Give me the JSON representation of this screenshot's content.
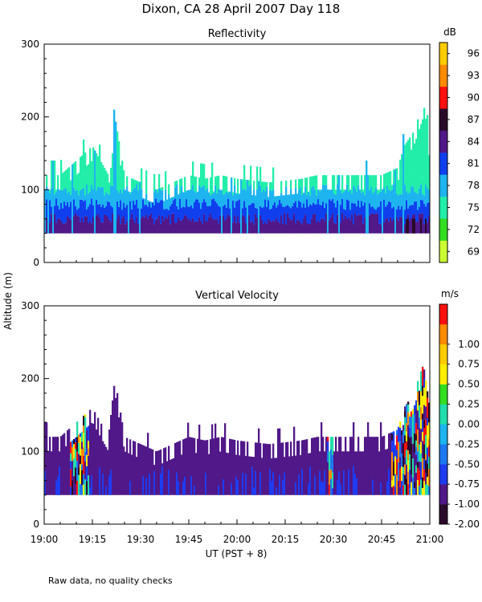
{
  "title": "Dixon, CA 28 April 2007  Day 118",
  "ylabel": "Altitude (m)",
  "xlabel": "UT  (PST + 8)",
  "footnote": "Raw data, no quality checks",
  "x_ticks": [
    "19:00",
    "19:15",
    "19:30",
    "19:45",
    "20:00",
    "20:15",
    "20:30",
    "20:45",
    "21:00"
  ],
  "colors": {
    "reflectivity": [
      "#ccff33",
      "#33dd22",
      "#22eeaa",
      "#1eb4f0",
      "#1040ee",
      "#501888",
      "#2a0a2a",
      "#ff1010",
      "#ff8c00",
      "#ffcc00"
    ],
    "velocity": [
      "#2a0a2a",
      "#501888",
      "#1e3cf0",
      "#1e78f0",
      "#1eb4f0",
      "#22ddaa",
      "#33dd22",
      "#ffee00",
      "#ffcc00",
      "#ff8c00",
      "#ff1010"
    ]
  },
  "chart_data": [
    {
      "type": "heatmap",
      "title": "Reflectivity",
      "units": "dB",
      "xlim": [
        0,
        120
      ],
      "xlabel": "UT  (PST + 8)",
      "ylabel": "Altitude (m)",
      "ylim": [
        0,
        300
      ],
      "y_ticks": [
        "0",
        "100",
        "200",
        "300"
      ],
      "colorbar_ticks": [
        "69",
        "72",
        "75",
        "78",
        "81",
        "84",
        "87",
        "90",
        "93",
        "96"
      ],
      "echo_base_m": 40,
      "profile_top_m": {
        "x_min": [
          0,
          5,
          10,
          15,
          20,
          22,
          25,
          35,
          40,
          45,
          50,
          55,
          60,
          70,
          80,
          85,
          90,
          95,
          100,
          105,
          110,
          112,
          115,
          118,
          120
        ],
        "top": [
          120,
          120,
          140,
          160,
          120,
          200,
          120,
          100,
          110,
          120,
          115,
          120,
          115,
          110,
          115,
          120,
          120,
          120,
          120,
          120,
          130,
          160,
          180,
          220,
          160
        ]
      },
      "layers": [
        {
          "top_m": 60,
          "value_db": 84
        },
        {
          "top_m": 80,
          "value_db": 81
        },
        {
          "top_m": 100,
          "value_db": 78
        },
        {
          "top_m": 120,
          "value_db": 75
        }
      ]
    },
    {
      "type": "heatmap",
      "title": "Vertical Velocity",
      "units": "m/s",
      "xlim": [
        0,
        120
      ],
      "xlabel": "UT  (PST + 8)",
      "ylabel": "Altitude (m)",
      "ylim": [
        0,
        300
      ],
      "y_ticks": [
        "0",
        "100",
        "200",
        "300"
      ],
      "colorbar_ticks": [
        "-2.00",
        "-1.00",
        "-0.75",
        "-0.50",
        "-0.25",
        "0.00",
        "0.25",
        "0.50",
        "0.75",
        "1.00"
      ],
      "echo_base_m": 40,
      "profile_top_m": {
        "x_min": [
          0,
          5,
          10,
          15,
          20,
          22,
          25,
          35,
          40,
          45,
          50,
          55,
          60,
          70,
          80,
          85,
          90,
          95,
          100,
          105,
          110,
          112,
          115,
          118,
          120
        ],
        "top": [
          120,
          120,
          140,
          160,
          120,
          200,
          120,
          100,
          110,
          120,
          115,
          120,
          115,
          110,
          115,
          120,
          120,
          120,
          120,
          120,
          130,
          160,
          180,
          220,
          160
        ]
      },
      "dominant_value_ms": -1.0,
      "updraft_regions_min": [
        [
          8,
          14
        ],
        [
          88,
          90
        ],
        [
          108,
          120
        ]
      ]
    }
  ]
}
